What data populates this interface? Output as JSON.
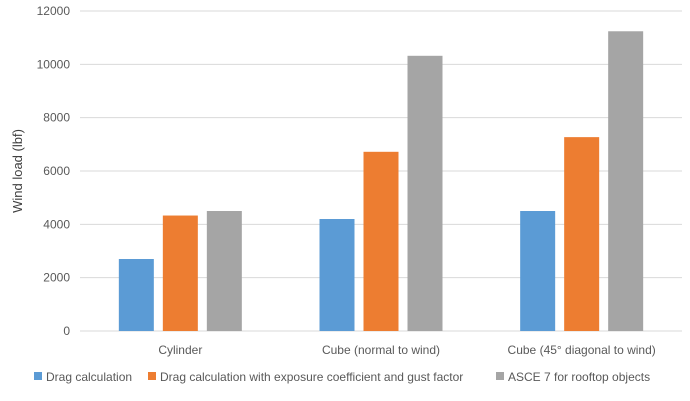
{
  "chart_data": {
    "type": "bar",
    "categories": [
      "Cylinder",
      "Cube (normal to wind)",
      "Cube (45° diagonal to wind)"
    ],
    "series": [
      {
        "name": "Drag calculation",
        "values": [
          2700,
          4200,
          4500
        ],
        "color": "#5B9BD5"
      },
      {
        "name": "Drag calculation with exposure coefficient and gust factor",
        "values": [
          4330,
          6720,
          7270
        ],
        "color": "#ED7D31"
      },
      {
        "name": "ASCE 7 for rooftop objects",
        "values": [
          4500,
          10320,
          11240
        ],
        "color": "#A5A5A5"
      }
    ],
    "title": "",
    "xlabel": "",
    "ylabel": "Wind load (lbf)",
    "ylim": [
      0,
      12000
    ],
    "yticks": [
      0,
      2000,
      4000,
      6000,
      8000,
      10000,
      12000
    ],
    "grid": true,
    "legend_position": "bottom"
  }
}
